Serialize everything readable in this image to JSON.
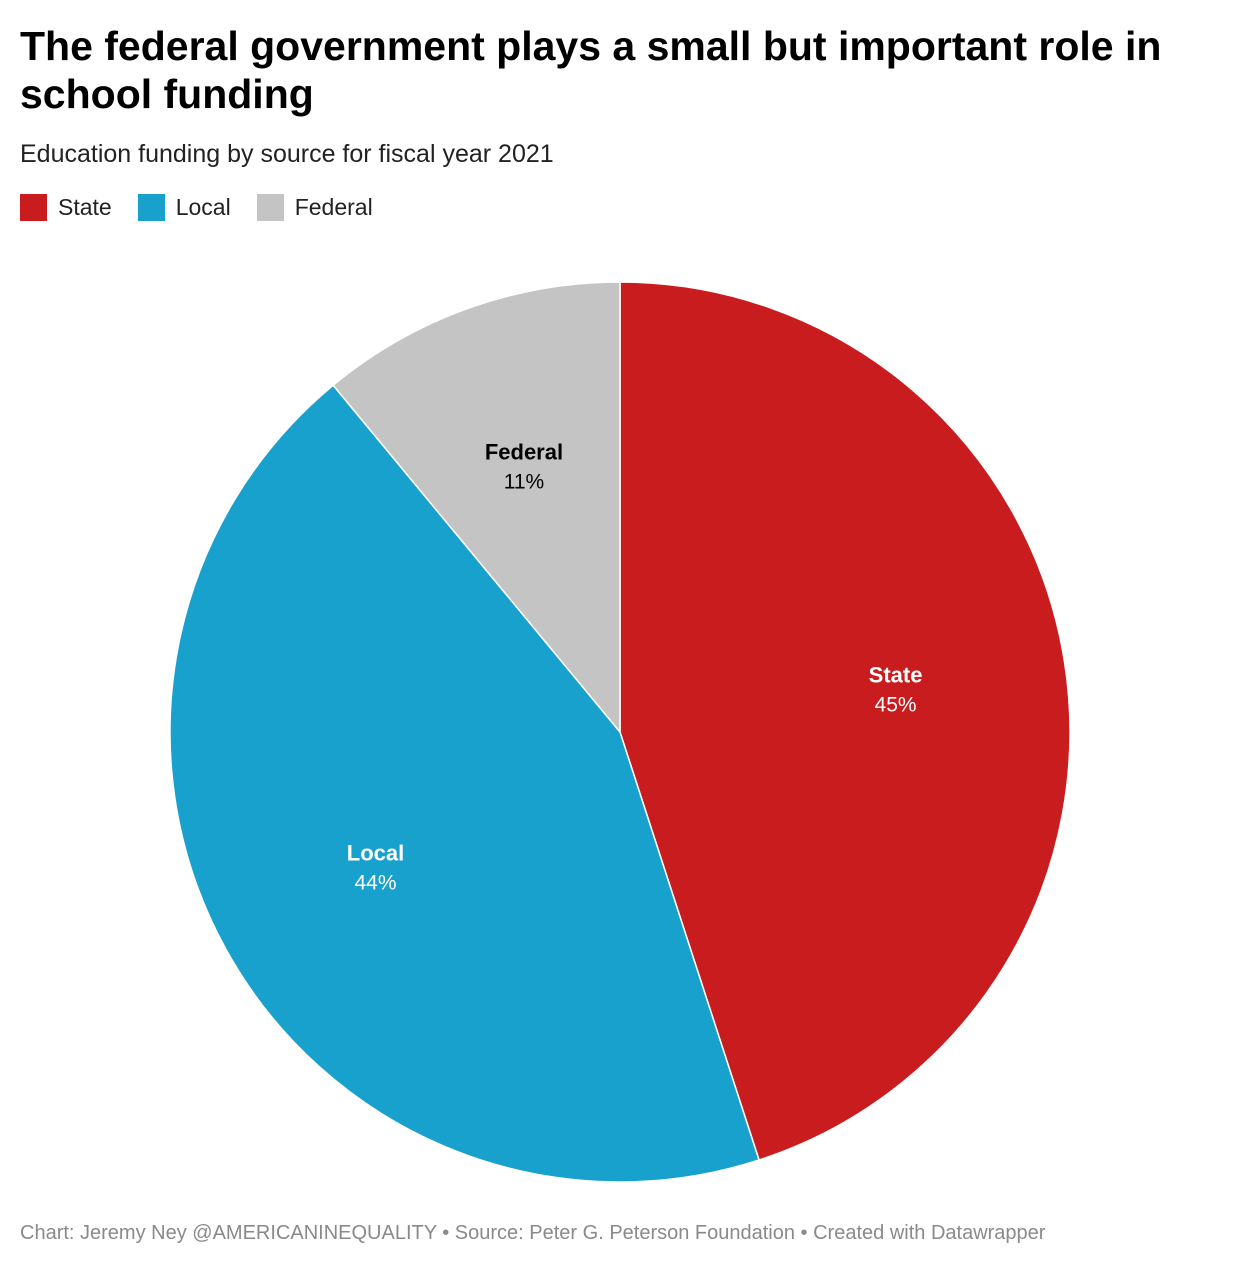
{
  "chart_data": {
    "type": "pie",
    "title": "The federal government plays a small but important role in school funding",
    "subtitle": "Education funding by source for fiscal year 2021",
    "legend_position": "top-left",
    "slices": [
      {
        "label": "State",
        "value": 45,
        "value_label": "45%",
        "color": "#c81c1e",
        "text_color": "#ffffff"
      },
      {
        "label": "Local",
        "value": 44,
        "value_label": "44%",
        "color": "#18a1cd",
        "text_color": "#ffffff"
      },
      {
        "label": "Federal",
        "value": 11,
        "value_label": "11%",
        "color": "#c4c4c4",
        "text_color": "#000000"
      }
    ]
  },
  "footer": "Chart: Jeremy Ney @AMERICANINEQUALITY • Source: Peter G. Peterson Foundation • Created with Datawrapper"
}
